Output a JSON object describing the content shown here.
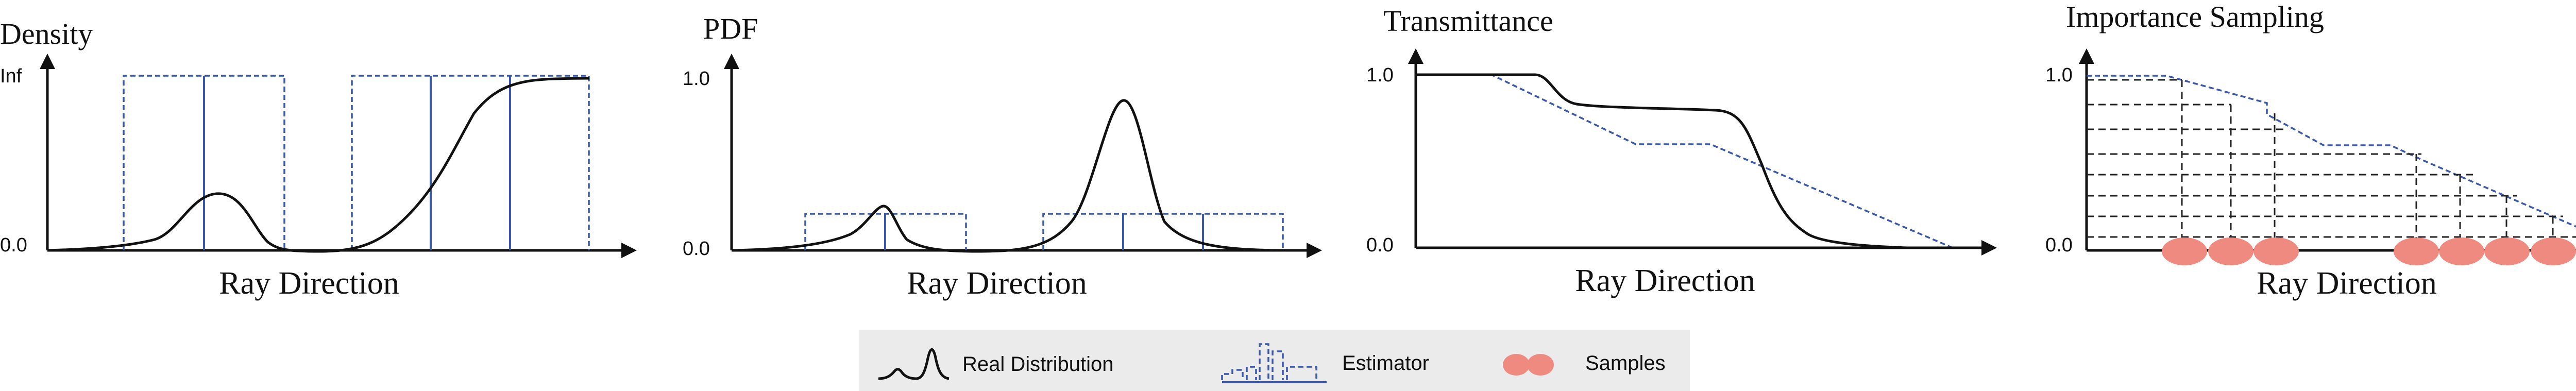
{
  "panels": [
    {
      "title": "Density",
      "ytick_top": "Inf",
      "ytick_bottom": "0.0",
      "xlabel": "Ray Direction"
    },
    {
      "title": "PDF",
      "ytick_top": "1.0",
      "ytick_bottom": "0.0",
      "xlabel": "Ray Direction"
    },
    {
      "title": "Transmittance",
      "ytick_top": "1.0",
      "ytick_bottom": "0.0",
      "xlabel": "Ray Direction"
    },
    {
      "title": "Importance Sampling",
      "ytick_top": "1.0",
      "ytick_bottom": "0.0",
      "xlabel": "Ray Direction"
    }
  ],
  "legend": {
    "real_distribution": "Real Distribution",
    "estimator": "Estimator",
    "samples": "Samples"
  },
  "colors": {
    "real_curve": "#111111",
    "estimator": "#3b58a8",
    "samples": "#ee8a80",
    "legend_background": "#ebebeb"
  }
}
